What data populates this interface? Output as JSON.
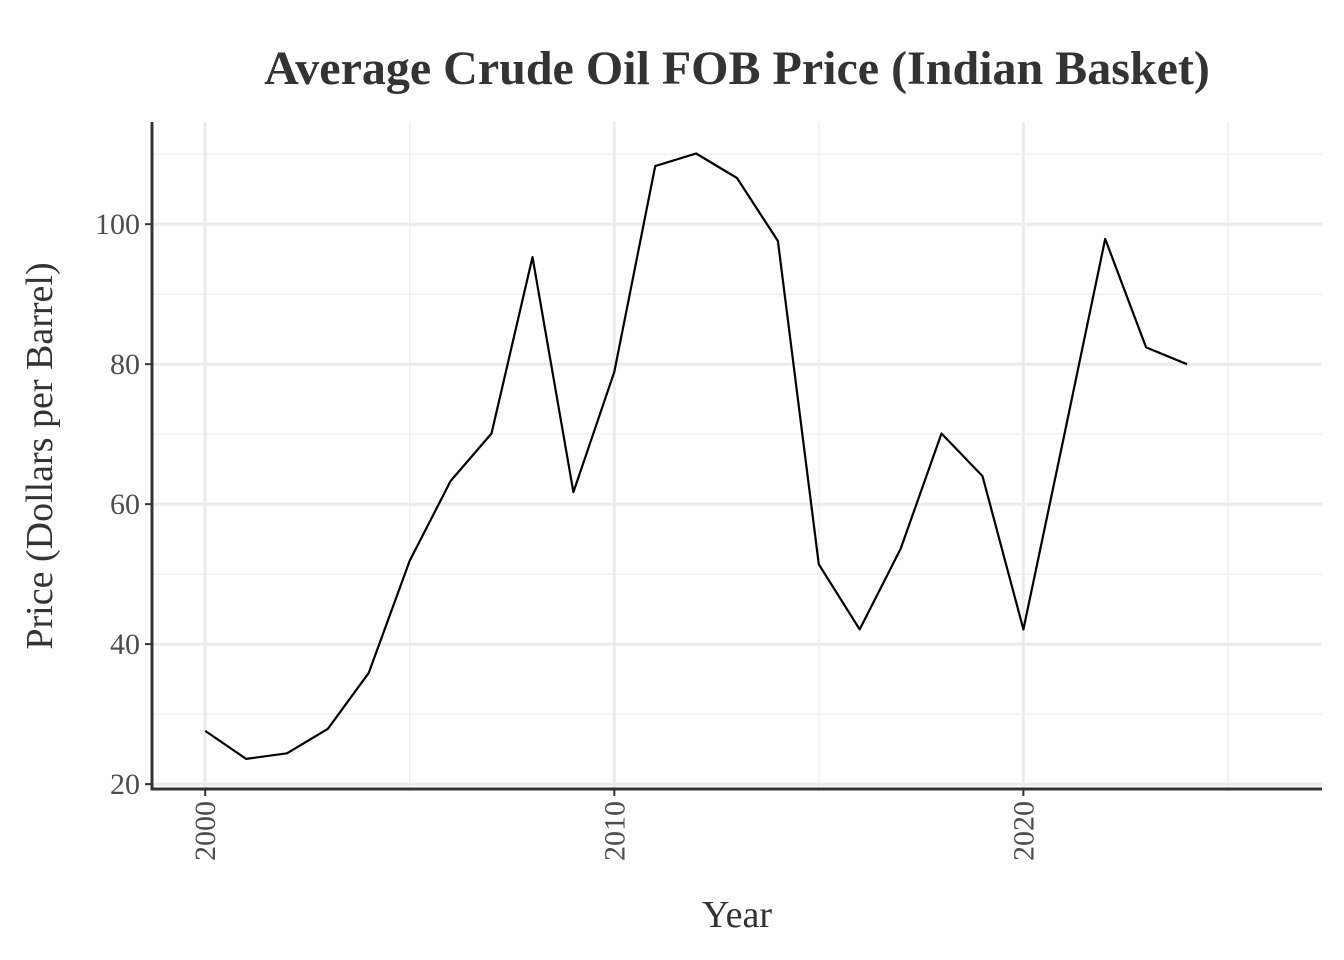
{
  "chart_data": {
    "type": "line",
    "title": "Average Crude Oil FOB Price (Indian Basket)",
    "xlabel": "Year",
    "ylabel": "Price (Dollars per Barrel)",
    "xlim": [
      1998.7,
      2027.3
    ],
    "ylim": [
      19.3,
      114.6
    ],
    "xticks": [
      2000,
      2010,
      2020
    ],
    "xtick_labels": [
      "2000",
      "2010",
      "2020"
    ],
    "xminor": [
      2005,
      2015,
      2025
    ],
    "yticks": [
      20,
      40,
      60,
      80,
      100
    ],
    "ytick_labels": [
      "20",
      "40",
      "60",
      "80",
      "100"
    ],
    "yminor": [
      30,
      50,
      70,
      90,
      110
    ],
    "grid": true,
    "legend": "none",
    "series": [
      {
        "name": "Price",
        "color": "#000000",
        "x": [
          2000,
          2001,
          2002,
          2003,
          2004,
          2005,
          2006,
          2007,
          2008,
          2009,
          2010,
          2011,
          2012,
          2013,
          2014,
          2015,
          2016,
          2017,
          2018,
          2019,
          2020,
          2021,
          2022,
          2023,
          2024
        ],
        "y": [
          27.6,
          23.6,
          24.4,
          27.9,
          35.9,
          51.9,
          63.3,
          70.1,
          95.3,
          61.7,
          78.9,
          108.3,
          110.1,
          106.6,
          97.6,
          51.4,
          42.1,
          53.6,
          70.1,
          64.0,
          42.1,
          69.9,
          97.9,
          82.4,
          80.0
        ]
      }
    ]
  }
}
